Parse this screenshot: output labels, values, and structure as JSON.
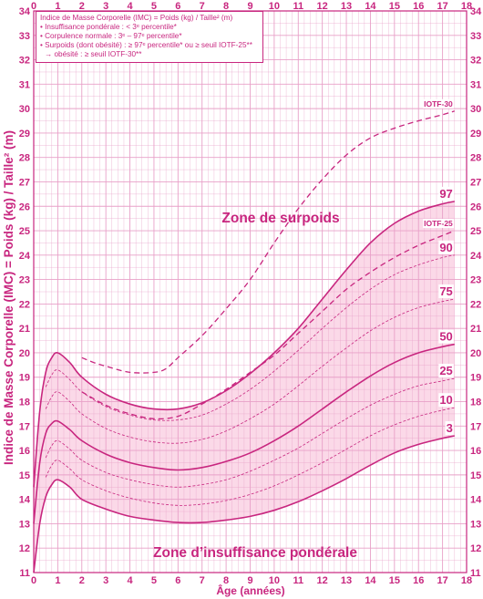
{
  "legend": {
    "line1": "Indice de Masse Corporelle (IMC) = Poids (kg) / Taille² (m)",
    "line2": "• Insuffisance pondérale : < 3ᵉ percentile*",
    "line3": "• Corpulence normale : 3ᵉ – 97ᵉ percentile*",
    "line4": "• Surpoids (dont obésité) : ≥ 97ᵉ percentile* ou ≥ seuil IOTF-25**",
    "line5": "→ obésité : ≥ seuil IOTF-30**"
  },
  "zones": {
    "surpoids": "Zone de surpoids",
    "insuffisance": "Zone d’insuffisance pondérale"
  },
  "colors": {
    "line": "#c8267f",
    "grid": "#e8a0c8",
    "shade": "#fbd9e8"
  },
  "chart_data": {
    "type": "line",
    "xlabel": "Âge (années)",
    "ylabel": "Indice de Masse Corporelle (IMC) = Poids (kg) / Taille² (m)",
    "xlim": [
      0,
      18
    ],
    "ylim": [
      11,
      34
    ],
    "x_ticks": [
      0,
      1,
      2,
      3,
      4,
      5,
      6,
      7,
      8,
      9,
      10,
      11,
      12,
      13,
      14,
      15,
      16,
      17,
      18
    ],
    "y_ticks": [
      11,
      12,
      13,
      14,
      15,
      16,
      17,
      18,
      19,
      20,
      21,
      22,
      23,
      24,
      25,
      26,
      27,
      28,
      29,
      30,
      31,
      32,
      33,
      34
    ],
    "shaded_band": [
      "3",
      "97"
    ],
    "series": [
      {
        "name": "3",
        "style": "solid",
        "x": [
          0,
          0.25,
          0.5,
          0.75,
          1,
          1.5,
          2,
          3,
          4,
          5,
          6,
          7,
          8,
          9,
          10,
          11,
          12,
          13,
          14,
          15,
          16,
          17,
          17.5
        ],
        "y": [
          11.0,
          13.0,
          14.1,
          14.6,
          14.8,
          14.5,
          14.0,
          13.6,
          13.3,
          13.15,
          13.05,
          13.05,
          13.15,
          13.3,
          13.55,
          13.9,
          14.35,
          14.85,
          15.4,
          15.9,
          16.25,
          16.5,
          16.6
        ]
      },
      {
        "name": "10",
        "style": "dashed",
        "x": [
          0.5,
          0.75,
          1,
          1.5,
          2,
          3,
          4,
          5,
          6,
          7,
          8,
          9,
          10,
          11,
          12,
          13,
          14,
          15,
          16,
          17,
          17.5
        ],
        "y": [
          14.9,
          15.4,
          15.6,
          15.25,
          14.8,
          14.35,
          14.05,
          13.85,
          13.75,
          13.8,
          13.95,
          14.2,
          14.55,
          15.0,
          15.5,
          16.05,
          16.6,
          17.05,
          17.4,
          17.65,
          17.75
        ]
      },
      {
        "name": "25",
        "style": "dashed",
        "x": [
          0.5,
          0.75,
          1,
          1.5,
          2,
          3,
          4,
          5,
          6,
          7,
          8,
          9,
          10,
          11,
          12,
          13,
          14,
          15,
          16,
          17,
          17.5
        ],
        "y": [
          15.7,
          16.2,
          16.4,
          16.05,
          15.6,
          15.1,
          14.8,
          14.6,
          14.5,
          14.6,
          14.8,
          15.15,
          15.6,
          16.1,
          16.7,
          17.3,
          17.85,
          18.3,
          18.65,
          18.85,
          18.95
        ]
      },
      {
        "name": "50",
        "style": "solid",
        "x": [
          0,
          0.25,
          0.5,
          0.75,
          1,
          1.5,
          2,
          3,
          4,
          5,
          6,
          7,
          8,
          9,
          10,
          11,
          12,
          13,
          14,
          15,
          16,
          17,
          17.5
        ],
        "y": [
          13.0,
          15.5,
          16.7,
          17.1,
          17.2,
          16.85,
          16.4,
          15.85,
          15.5,
          15.3,
          15.2,
          15.3,
          15.55,
          15.9,
          16.4,
          17.0,
          17.7,
          18.4,
          19.05,
          19.6,
          20.0,
          20.25,
          20.35
        ]
      },
      {
        "name": "75",
        "style": "dashed",
        "x": [
          0.5,
          0.75,
          1,
          1.5,
          2,
          3,
          4,
          5,
          6,
          7,
          8,
          9,
          10,
          11,
          12,
          13,
          14,
          15,
          16,
          17,
          17.5
        ],
        "y": [
          17.7,
          18.2,
          18.4,
          18.0,
          17.5,
          16.9,
          16.55,
          16.35,
          16.3,
          16.45,
          16.8,
          17.3,
          17.9,
          18.65,
          19.45,
          20.2,
          20.9,
          21.45,
          21.85,
          22.1,
          22.2
        ]
      },
      {
        "name": "90",
        "style": "dashed",
        "x": [
          0.5,
          0.75,
          1,
          1.5,
          2,
          3,
          4,
          5,
          6,
          7,
          8,
          9,
          10,
          11,
          12,
          13,
          14,
          15,
          16,
          17,
          17.5
        ],
        "y": [
          18.6,
          19.1,
          19.3,
          18.9,
          18.4,
          17.8,
          17.45,
          17.25,
          17.25,
          17.45,
          17.9,
          18.5,
          19.25,
          20.1,
          21.0,
          21.85,
          22.6,
          23.2,
          23.6,
          23.9,
          24.0
        ]
      },
      {
        "name": "97",
        "style": "solid",
        "x": [
          0,
          0.25,
          0.5,
          0.75,
          1,
          1.5,
          2,
          3,
          4,
          5,
          6,
          7,
          8,
          9,
          10,
          11,
          12,
          13,
          14,
          15,
          16,
          17,
          17.5
        ],
        "y": [
          14.5,
          17.6,
          19.2,
          19.8,
          20.0,
          19.6,
          19.0,
          18.3,
          17.9,
          17.7,
          17.7,
          17.95,
          18.45,
          19.15,
          20.0,
          21.0,
          22.2,
          23.4,
          24.5,
          25.3,
          25.8,
          26.1,
          26.2
        ]
      },
      {
        "name": "IOTF-25",
        "style": "dashed-bold",
        "x": [
          2,
          3,
          4,
          5,
          6,
          7,
          8,
          9,
          10,
          11,
          12,
          13,
          14,
          15,
          16,
          17,
          17.5
        ],
        "y": [
          18.4,
          17.85,
          17.5,
          17.3,
          17.4,
          17.9,
          18.5,
          19.2,
          19.9,
          20.8,
          21.7,
          22.6,
          23.3,
          23.9,
          24.4,
          24.8,
          25.0
        ]
      },
      {
        "name": "IOTF-30",
        "style": "dashed-bold",
        "x": [
          2,
          2.5,
          3,
          4,
          5,
          5.5,
          6,
          7,
          8,
          9,
          10,
          11,
          12,
          13,
          14,
          15,
          16,
          17,
          17.5
        ],
        "y": [
          19.8,
          19.6,
          19.45,
          19.2,
          19.2,
          19.35,
          19.8,
          20.7,
          21.8,
          23.0,
          24.5,
          25.9,
          27.1,
          28.1,
          28.8,
          29.2,
          29.5,
          29.75,
          29.9
        ]
      }
    ]
  }
}
